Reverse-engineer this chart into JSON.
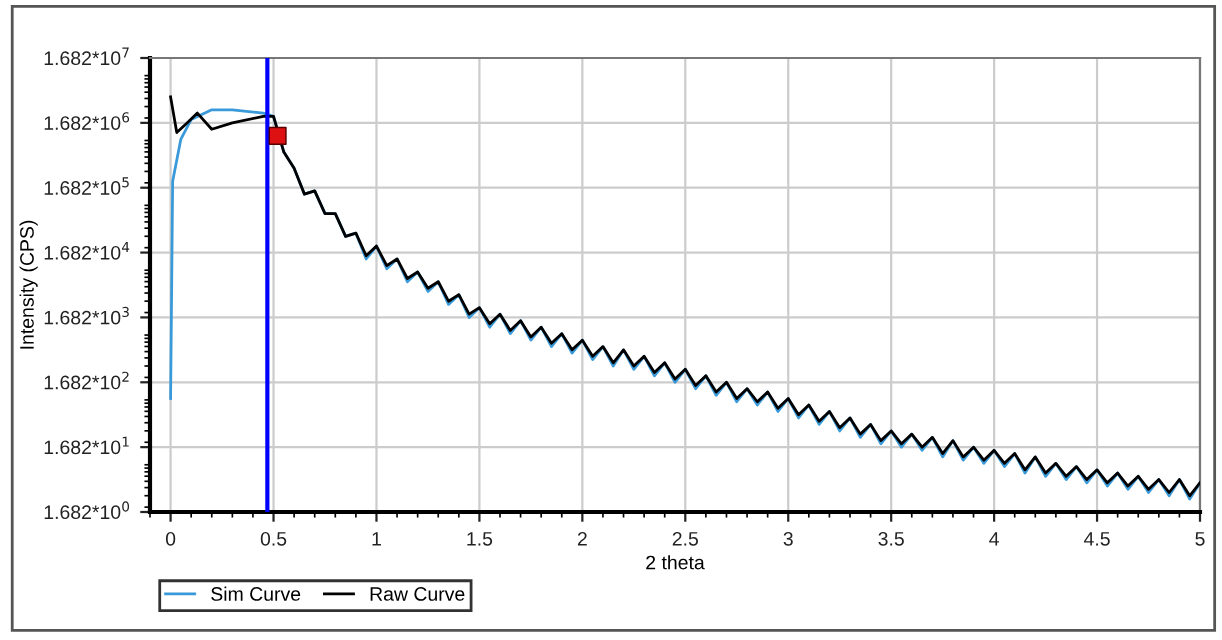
{
  "chart_data": {
    "type": "line",
    "xlabel": "2 theta",
    "ylabel": "Intensity (CPS)",
    "log": "y",
    "grid": true,
    "legend": "bottom left",
    "line_style": "solid",
    "xlim": [
      -0.1,
      5
    ],
    "xticks": [
      0,
      0.5,
      1,
      1.5,
      2,
      2.5,
      3,
      3.5,
      4,
      4.5,
      5
    ],
    "ylim": [
      1.682,
      16820000
    ],
    "yticks": [
      {
        "value": 1.682,
        "label": "1.682*10$^{0}$"
      },
      {
        "value": 16.82,
        "label": "1.682*10$^{1}$"
      },
      {
        "value": 168.2,
        "label": "1.682*10$^{2}$"
      },
      {
        "value": 1682,
        "label": "1.682*10$^{3}$"
      },
      {
        "value": 16820,
        "label": "1.682*10$^{4}$"
      },
      {
        "value": 168200,
        "label": "1.682*10$^{5}$"
      },
      {
        "value": 1682000,
        "label": "1.682*10$^{6}$"
      },
      {
        "value": 16820000,
        "label": "1.682*10$^{7}$"
      }
    ],
    "ref_lines": [
      {
        "axis": "x",
        "value": 0.47,
        "label": null,
        "color": "#0000ff"
      }
    ],
    "series": [
      {
        "name": "Sim Curve",
        "color": "#3a9ad9",
        "marker": "none",
        "x": [
          0,
          0.005,
          0.01,
          0.05,
          0.1,
          0.2,
          0.3,
          0.45,
          0.5,
          0.55,
          0.6,
          0.65,
          0.7,
          0.75,
          0.8,
          0.85,
          0.9,
          0.95,
          1.0,
          1.05,
          1.1,
          1.15,
          1.2,
          1.25,
          1.3,
          1.35,
          1.4,
          1.45,
          1.5,
          1.55,
          1.6,
          1.65,
          1.7,
          1.75,
          1.8,
          1.85,
          1.9,
          1.95,
          2.0,
          2.05,
          2.1,
          2.15,
          2.2,
          2.25,
          2.3,
          2.35,
          2.4,
          2.45,
          2.5,
          2.55,
          2.6,
          2.65,
          2.7,
          2.75,
          2.8,
          2.85,
          2.9,
          2.95,
          3.0,
          3.05,
          3.1,
          3.15,
          3.2,
          3.25,
          3.3,
          3.35,
          3.4,
          3.45,
          3.5,
          3.55,
          3.6,
          3.65,
          3.7,
          3.75,
          3.8,
          3.85,
          3.9,
          3.95,
          4.0,
          4.05,
          4.1,
          4.15,
          4.2,
          4.25,
          4.3,
          4.35,
          4.4,
          4.45,
          4.5,
          4.55,
          4.6,
          4.65,
          4.7,
          4.75,
          4.8,
          4.85,
          4.9,
          4.95,
          5.0
        ],
        "values": [
          94.6,
          4230,
          212000,
          946000,
          1890000,
          2670000,
          2670000,
          2380000,
          2120000,
          597000,
          336000,
          134000,
          150000,
          67000,
          67000,
          29900,
          33600,
          13400,
          21200,
          9460,
          13400,
          5970,
          8430,
          4230,
          5970,
          2670,
          3770,
          1680,
          2380,
          1190,
          1890,
          946,
          1500,
          751,
          1190,
          597,
          946,
          474,
          751,
          377,
          597,
          299,
          532,
          267,
          423,
          212,
          336,
          168,
          267,
          134,
          212,
          106,
          168,
          84.3,
          134,
          75.1,
          119,
          59.7,
          94.6,
          47.4,
          75.1,
          37.7,
          59.7,
          29.9,
          47.4,
          23.8,
          37.7,
          18.9,
          29.9,
          16.8,
          26.7,
          15.0,
          23.8,
          11.9,
          21.2,
          10.6,
          16.8,
          9.46,
          15.0,
          8.43,
          13.4,
          6.7,
          11.9,
          5.97,
          9.46,
          5.32,
          8.43,
          4.74,
          7.51,
          4.23,
          6.7,
          3.77,
          5.97,
          3.36,
          5.32,
          2.99,
          5.32,
          2.67,
          4.74
        ]
      },
      {
        "name": "Raw Curve",
        "color": "#000000",
        "marker": "none",
        "x": [
          0,
          0.03,
          0.08,
          0.13,
          0.2,
          0.3,
          0.45,
          0.5,
          0.55,
          0.6,
          0.65,
          0.7,
          0.75,
          0.8,
          0.85,
          0.9,
          0.95,
          1.0,
          1.05,
          1.1,
          1.15,
          1.2,
          1.25,
          1.3,
          1.35,
          1.4,
          1.45,
          1.5,
          1.55,
          1.6,
          1.65,
          1.7,
          1.75,
          1.8,
          1.85,
          1.9,
          1.95,
          2.0,
          2.05,
          2.1,
          2.15,
          2.2,
          2.25,
          2.3,
          2.35,
          2.4,
          2.45,
          2.5,
          2.55,
          2.6,
          2.65,
          2.7,
          2.75,
          2.8,
          2.85,
          2.9,
          2.95,
          3.0,
          3.05,
          3.1,
          3.15,
          3.2,
          3.25,
          3.3,
          3.35,
          3.4,
          3.45,
          3.5,
          3.55,
          3.6,
          3.65,
          3.7,
          3.75,
          3.8,
          3.85,
          3.9,
          3.95,
          4.0,
          4.05,
          4.1,
          4.15,
          4.2,
          4.25,
          4.3,
          4.35,
          4.4,
          4.45,
          4.5,
          4.55,
          4.6,
          4.65,
          4.7,
          4.75,
          4.8,
          4.85,
          4.9,
          4.95,
          5.0
        ],
        "values": [
          4230000,
          1190000,
          1680000,
          2380000,
          1340000,
          1680000,
          2120000,
          2120000,
          597000,
          336000,
          134000,
          150000,
          67000,
          67000,
          29900,
          33600,
          15000,
          21200,
          10600,
          13400,
          6700,
          8430,
          4740,
          5970,
          2990,
          3770,
          1890,
          2380,
          1340,
          1890,
          1060,
          1500,
          843,
          1190,
          670,
          946,
          532,
          751,
          423,
          597,
          336,
          532,
          299,
          423,
          238,
          336,
          189,
          267,
          150,
          212,
          119,
          168,
          94.6,
          134,
          84.3,
          119,
          67.0,
          94.6,
          53.2,
          75.1,
          42.3,
          59.7,
          33.6,
          47.4,
          26.7,
          37.7,
          21.2,
          29.9,
          18.9,
          26.7,
          16.8,
          23.8,
          13.4,
          21.2,
          11.9,
          16.8,
          10.6,
          15.0,
          9.46,
          13.4,
          7.51,
          11.9,
          6.7,
          9.46,
          5.97,
          8.43,
          5.32,
          7.51,
          4.74,
          6.7,
          4.23,
          5.97,
          3.77,
          5.32,
          3.36,
          5.32,
          2.99,
          4.74
        ]
      },
      {
        "type": "scatter",
        "color": "#dd1111",
        "marker": "square",
        "x": [
          0.52
        ],
        "values": [
          1060000
        ]
      }
    ]
  }
}
